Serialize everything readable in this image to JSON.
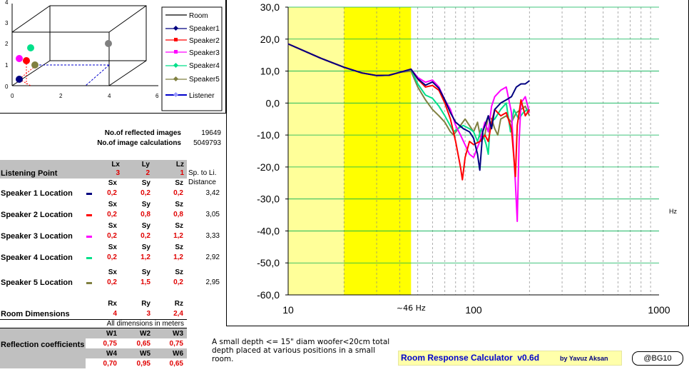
{
  "scene": {
    "legend": [
      {
        "label": "Room",
        "color": "#000000"
      },
      {
        "label": "Speaker1",
        "color": "#000080"
      },
      {
        "label": "Speaker2",
        "color": "#ff0000"
      },
      {
        "label": "Speaker3",
        "color": "#ff00ff"
      },
      {
        "label": "Speaker4",
        "color": "#00e08a"
      },
      {
        "label": "Speaker5",
        "color": "#808040"
      },
      {
        "label": "Listener",
        "color": "#0000cc"
      }
    ],
    "x_ticks": [
      "0",
      "2",
      "4",
      "6"
    ],
    "y_ticks": [
      "0",
      "1",
      "2",
      "3",
      "4"
    ]
  },
  "stats": {
    "reflected_label": "No.of reflected images",
    "reflected_value": "19649",
    "calc_label": "No.of image calculations",
    "calc_value": "5049793"
  },
  "table": {
    "listening": {
      "label": "Listening Point",
      "headers": [
        "Lx",
        "Ly",
        "Lz"
      ],
      "values": [
        "3",
        "2",
        "1"
      ],
      "dist_header_1": "Sp. to Li.",
      "dist_header_2": "Distance"
    },
    "speakers": [
      {
        "label": "Speaker 1 Location",
        "color": "#000080",
        "headers": [
          "Sx",
          "Sy",
          "Sz"
        ],
        "values": [
          "0,2",
          "0,2",
          "0,2"
        ],
        "distance": "3,42"
      },
      {
        "label": "Speaker 2 Location",
        "color": "#ff0000",
        "headers": [
          "Sx",
          "Sy",
          "Sz"
        ],
        "values": [
          "0,2",
          "0,8",
          "0,8"
        ],
        "distance": "3,05"
      },
      {
        "label": "Speaker 3 Location",
        "color": "#ff00ff",
        "headers": [
          "Sx",
          "Sy",
          "Sz"
        ],
        "values": [
          "0,2",
          "0,2",
          "1,2"
        ],
        "distance": "3,33"
      },
      {
        "label": "Speaker 4 Location",
        "color": "#00e08a",
        "headers": [
          "Sx",
          "Sy",
          "Sz"
        ],
        "values": [
          "0,2",
          "1,2",
          "1,2"
        ],
        "distance": "2,92"
      },
      {
        "label": "Speaker 5 Location",
        "color": "#808040",
        "headers": [
          "Sx",
          "Sy",
          "Sz"
        ],
        "values": [
          "0,2",
          "1,5",
          "0,2"
        ],
        "distance": "2,95"
      }
    ],
    "room": {
      "label": "Room Dimensions",
      "headers": [
        "Rx",
        "Ry",
        "Rz"
      ],
      "values": [
        "4",
        "3",
        "2,4"
      ],
      "note": "All dimensions in meters"
    },
    "reflection": {
      "label": "Reflection coefficients",
      "headers1": [
        "W1",
        "W2",
        "W3"
      ],
      "values1": [
        "0,75",
        "0,65",
        "0,75"
      ],
      "headers2": [
        "W4",
        "W5",
        "W6"
      ],
      "values2": [
        "0,70",
        "0,95",
        "0,65"
      ]
    }
  },
  "chart_data": {
    "type": "line",
    "x_scale": "log",
    "xlim": [
      10,
      1000
    ],
    "ylim": [
      -60,
      30
    ],
    "y_ticks": [
      "30,0",
      "20,0",
      "10,0",
      "0,0",
      "-10,0",
      "-20,0",
      "-30,0",
      "-40,0",
      "-50,0",
      "-60,0"
    ],
    "x_ticks": [
      "10",
      "100",
      "1000"
    ],
    "unit_label": "Hz",
    "annotation": "~46 Hz",
    "bands": [
      {
        "from": 10,
        "to": 20,
        "color": "#ffff99"
      },
      {
        "from": 20,
        "to": 46,
        "color": "#ffff00"
      }
    ],
    "series": [
      {
        "name": "Speaker1",
        "color": "#000080",
        "points": [
          [
            10,
            18.5
          ],
          [
            15,
            14
          ],
          [
            20,
            11.2
          ],
          [
            25,
            9.4
          ],
          [
            30,
            8.6
          ],
          [
            35,
            8.7
          ],
          [
            40,
            9.6
          ],
          [
            46,
            10.6
          ],
          [
            50,
            7.6
          ],
          [
            55,
            5.6
          ],
          [
            60,
            6.6
          ],
          [
            65,
            4.6
          ],
          [
            70,
            1
          ],
          [
            75,
            -3
          ],
          [
            80,
            -6
          ],
          [
            88,
            -8
          ],
          [
            95,
            -9
          ],
          [
            100,
            -11
          ],
          [
            105,
            -16
          ],
          [
            108,
            -21
          ],
          [
            112,
            -9
          ],
          [
            120,
            -4
          ],
          [
            125,
            -8
          ],
          [
            130,
            -2
          ],
          [
            140,
            0
          ],
          [
            150,
            1
          ],
          [
            160,
            2
          ],
          [
            170,
            5
          ],
          [
            180,
            6
          ],
          [
            190,
            6
          ],
          [
            200,
            7
          ]
        ]
      },
      {
        "name": "Speaker2",
        "color": "#ff0000",
        "points": [
          [
            10,
            18.5
          ],
          [
            15,
            14
          ],
          [
            20,
            11.2
          ],
          [
            25,
            9.4
          ],
          [
            30,
            8.6
          ],
          [
            35,
            8.7
          ],
          [
            40,
            9.6
          ],
          [
            46,
            10.6
          ],
          [
            50,
            7.5
          ],
          [
            55,
            5
          ],
          [
            60,
            5.5
          ],
          [
            65,
            4
          ],
          [
            70,
            0
          ],
          [
            75,
            -5
          ],
          [
            80,
            -12
          ],
          [
            85,
            -20
          ],
          [
            87,
            -24
          ],
          [
            90,
            -17
          ],
          [
            95,
            -12
          ],
          [
            100,
            -13
          ],
          [
            108,
            -12
          ],
          [
            115,
            -10
          ],
          [
            120,
            -12
          ],
          [
            125,
            -6
          ],
          [
            130,
            -2
          ],
          [
            140,
            -4
          ],
          [
            150,
            -3
          ],
          [
            160,
            -8
          ],
          [
            168,
            -23
          ],
          [
            172,
            -7
          ],
          [
            180,
            1
          ],
          [
            190,
            -4
          ],
          [
            200,
            -2
          ]
        ]
      },
      {
        "name": "Speaker3",
        "color": "#ff00ff",
        "points": [
          [
            10,
            18.5
          ],
          [
            15,
            14
          ],
          [
            20,
            11.2
          ],
          [
            25,
            9.4
          ],
          [
            30,
            8.6
          ],
          [
            35,
            8.7
          ],
          [
            40,
            9.6
          ],
          [
            46,
            10.6
          ],
          [
            50,
            8
          ],
          [
            55,
            6.5
          ],
          [
            60,
            7.2
          ],
          [
            65,
            5
          ],
          [
            70,
            1
          ],
          [
            75,
            -2
          ],
          [
            80,
            -7
          ],
          [
            85,
            -10
          ],
          [
            95,
            -16
          ],
          [
            100,
            -17
          ],
          [
            108,
            -12
          ],
          [
            115,
            -6
          ],
          [
            120,
            -9
          ],
          [
            125,
            -1
          ],
          [
            130,
            2
          ],
          [
            140,
            4
          ],
          [
            150,
            5
          ],
          [
            160,
            -3
          ],
          [
            168,
            -25
          ],
          [
            172,
            -37
          ],
          [
            176,
            -12
          ],
          [
            180,
            0
          ],
          [
            190,
            2
          ],
          [
            200,
            -3
          ]
        ]
      },
      {
        "name": "Speaker4",
        "color": "#00e08a",
        "points": [
          [
            10,
            18.5
          ],
          [
            15,
            14
          ],
          [
            20,
            11.2
          ],
          [
            25,
            9.4
          ],
          [
            30,
            8.6
          ],
          [
            35,
            8.7
          ],
          [
            40,
            9.6
          ],
          [
            46,
            10.5
          ],
          [
            50,
            6
          ],
          [
            55,
            2.5
          ],
          [
            60,
            1.5
          ],
          [
            65,
            -1
          ],
          [
            70,
            -4
          ],
          [
            78,
            -9
          ],
          [
            82,
            -8
          ],
          [
            88,
            -7
          ],
          [
            95,
            -8
          ],
          [
            100,
            -9
          ],
          [
            105,
            -12
          ],
          [
            110,
            -8
          ],
          [
            117,
            -13
          ],
          [
            120,
            -16
          ],
          [
            123,
            -6
          ],
          [
            130,
            -5
          ],
          [
            140,
            -2
          ],
          [
            150,
            0
          ],
          [
            158,
            -9
          ],
          [
            165,
            -2
          ],
          [
            175,
            -5
          ],
          [
            185,
            -3
          ],
          [
            195,
            -2
          ],
          [
            200,
            -2
          ]
        ]
      },
      {
        "name": "Speaker5",
        "color": "#808040",
        "points": [
          [
            10,
            18.5
          ],
          [
            15,
            14
          ],
          [
            20,
            11.2
          ],
          [
            25,
            9.4
          ],
          [
            30,
            8.6
          ],
          [
            35,
            8.7
          ],
          [
            40,
            9.6
          ],
          [
            46,
            10
          ],
          [
            50,
            5
          ],
          [
            55,
            1
          ],
          [
            60,
            -2
          ],
          [
            65,
            -4
          ],
          [
            70,
            -6
          ],
          [
            75,
            -9
          ],
          [
            78,
            -10
          ],
          [
            85,
            -7
          ],
          [
            90,
            -5
          ],
          [
            100,
            -9
          ],
          [
            105,
            -6
          ],
          [
            110,
            -12
          ],
          [
            115,
            -10
          ],
          [
            120,
            -4
          ],
          [
            125,
            -5
          ],
          [
            130,
            -8
          ],
          [
            135,
            -10
          ],
          [
            140,
            -5
          ],
          [
            150,
            -4
          ],
          [
            160,
            -6
          ],
          [
            170,
            -3
          ],
          [
            180,
            -2
          ],
          [
            190,
            -1
          ],
          [
            200,
            -4
          ]
        ]
      }
    ]
  },
  "note": {
    "text": "A small depth <= 15\" diam woofer<20cm total depth placed at various positions in a small room."
  },
  "title": {
    "app": "Room Response Calculator  v0.6d",
    "author": "by Yavuz Aksan",
    "badge": "@BG10"
  }
}
